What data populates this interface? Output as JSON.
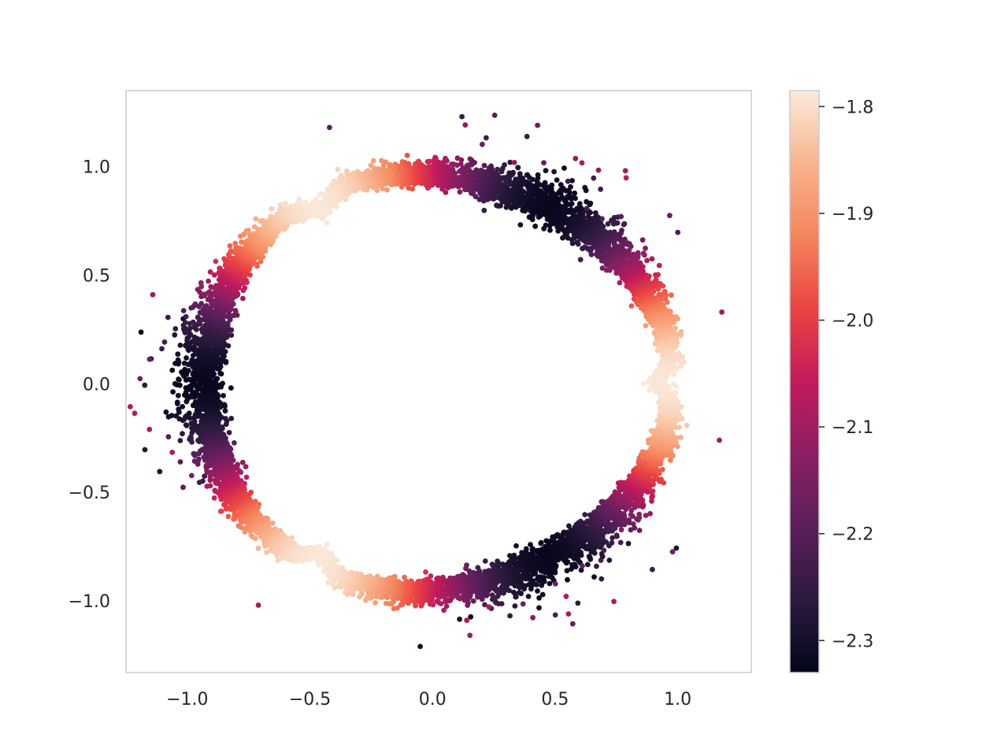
{
  "chart_data": {
    "type": "scatter",
    "title": "",
    "xlabel": "",
    "ylabel": "",
    "xlim": [
      -1.25,
      1.3
    ],
    "ylim": [
      -1.33,
      1.35
    ],
    "xticks": [
      -1.0,
      -0.5,
      0.0,
      0.5,
      1.0
    ],
    "yticks": [
      -1.0,
      -0.5,
      0.0,
      0.5,
      1.0
    ],
    "xtick_labels": [
      "−1.0",
      "−0.5",
      "0.0",
      "0.5",
      "1.0"
    ],
    "ytick_labels": [
      "−1.0",
      "−0.5",
      "0.0",
      "0.5",
      "1.0"
    ],
    "grid": false,
    "colormap": "rocket",
    "colormap_stops": [
      "#03051a",
      "#2b1a3d",
      "#5a1f5b",
      "#8b1f62",
      "#c21b5c",
      "#ea4442",
      "#f5855c",
      "#f8b48e",
      "#faebdd"
    ],
    "colorbar": {
      "range": [
        -2.33,
        -1.785
      ],
      "ticks": [
        -2.3,
        -2.2,
        -2.1,
        -2.0,
        -1.9,
        -1.8
      ],
      "tick_labels": [
        "−2.3",
        "−2.2",
        "−2.1",
        "−2.0",
        "−1.9",
        "−1.8"
      ]
    },
    "series": [
      {
        "shape": "three-lobed ring centred near (0, 0), radius about 0.95, three shallow notches at angles 0°, 120° and 240° where the colour value is highest (about -1.79); value falls towards -2.32 midway between notches (at 60°, 180°, 300°) where the band widens and scatters outward",
        "points_sample": [
          {
            "x": 0.86,
            "y": 0.0,
            "c": -1.79
          },
          {
            "x": -0.43,
            "y": 0.74,
            "c": -1.79
          },
          {
            "x": -0.43,
            "y": -0.74,
            "c": -1.79
          },
          {
            "x": 0.5,
            "y": 0.87,
            "c": -2.32
          },
          {
            "x": -1.05,
            "y": 0.0,
            "c": -2.32
          },
          {
            "x": 0.5,
            "y": -0.87,
            "c": -2.32
          },
          {
            "x": 1.18,
            "y": 0.33,
            "c": -2.1
          },
          {
            "x": 1.17,
            "y": -0.26,
            "c": -2.1
          },
          {
            "x": -0.42,
            "y": 1.18,
            "c": -2.2
          },
          {
            "x": 0.12,
            "y": 1.23,
            "c": -2.25
          },
          {
            "x": -0.71,
            "y": -1.02,
            "c": -2.1
          },
          {
            "x": -0.05,
            "y": -1.21,
            "c": -2.3
          }
        ]
      }
    ]
  }
}
